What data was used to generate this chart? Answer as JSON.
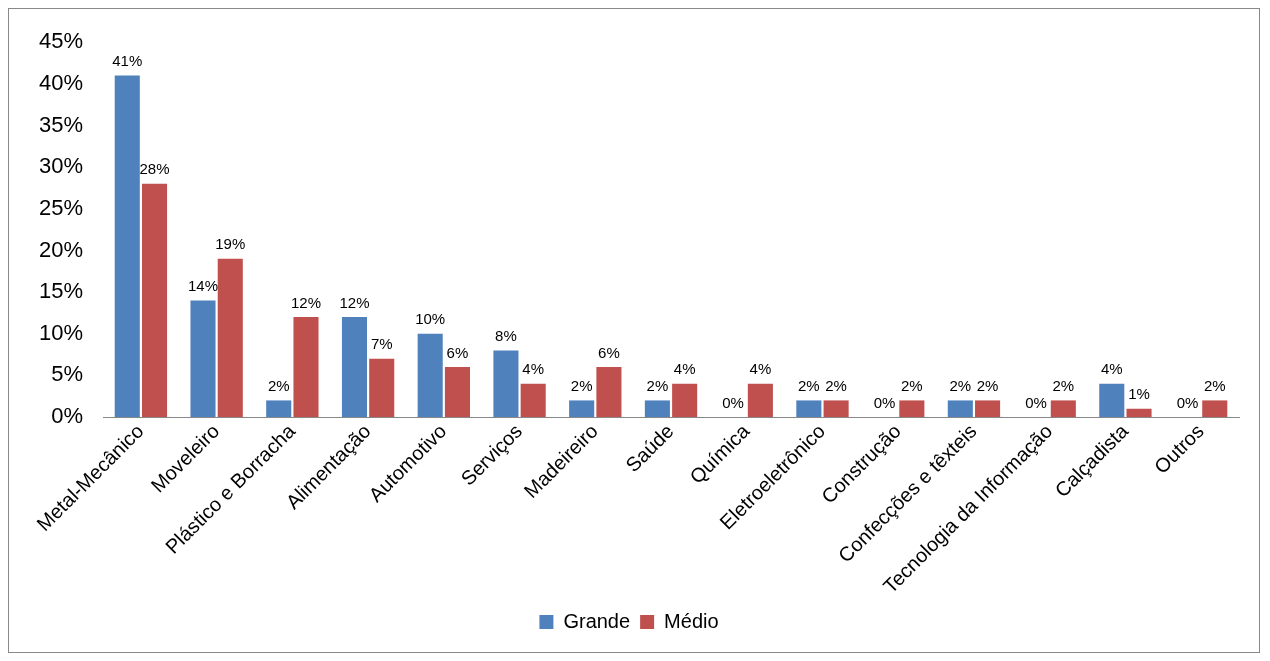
{
  "chart_data": {
    "type": "bar",
    "categories": [
      "Metal-Mecânico",
      "Moveleiro",
      "Plástico e Borracha",
      "Alimentação",
      "Automotivo",
      "Serviços",
      "Madeireiro",
      "Saúde",
      "Química",
      "Eletroeletrônico",
      "Construção",
      "Confecções e têxteis",
      "Tecnologia da Informação",
      "Calçadista",
      "Outros"
    ],
    "series": [
      {
        "name": "Grande",
        "color": "#4f81bd",
        "values": [
          41,
          14,
          2,
          12,
          10,
          8,
          2,
          2,
          0,
          2,
          0,
          2,
          0,
          4,
          0
        ],
        "value_labels": [
          "41%",
          "14%",
          "2%",
          "12%",
          "10%",
          "8%",
          "2%",
          "2%",
          "0%",
          "2%",
          "0%",
          "2%",
          "0%",
          "4%",
          "0%"
        ]
      },
      {
        "name": "Médio",
        "color": "#c0504d",
        "values": [
          28,
          19,
          12,
          7,
          6,
          4,
          6,
          4,
          4,
          2,
          2,
          2,
          2,
          1,
          2
        ],
        "value_labels": [
          "28%",
          "19%",
          "12%",
          "7%",
          "6%",
          "4%",
          "6%",
          "4%",
          "4%",
          "2%",
          "2%",
          "2%",
          "2%",
          "1%",
          "2%"
        ]
      }
    ],
    "ylim": [
      0,
      45
    ],
    "yticks": [
      {
        "value": 0,
        "label": "0%"
      },
      {
        "value": 5,
        "label": "5%"
      },
      {
        "value": 10,
        "label": "10%"
      },
      {
        "value": 15,
        "label": "15%"
      },
      {
        "value": 20,
        "label": "20%"
      },
      {
        "value": 25,
        "label": "25%"
      },
      {
        "value": 30,
        "label": "30%"
      },
      {
        "value": 35,
        "label": "35%"
      },
      {
        "value": 40,
        "label": "40%"
      },
      {
        "value": 45,
        "label": "45%"
      }
    ],
    "grid": false,
    "legend": "bottom"
  }
}
